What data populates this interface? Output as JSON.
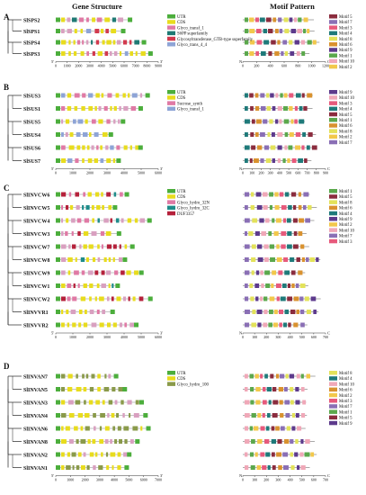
{
  "headers": {
    "gene_structure": "Gene Structure",
    "motif_pattern": "Motif Pattern"
  },
  "colors": {
    "UTR": "#4cae3c",
    "CDS": "#e8dc1e",
    "intron": "#d9a0c0",
    "Glyco_transf_1": "#e07aa5",
    "S6PP_superfamily": "#1f7a74",
    "Glycosyltransferase_GTB": "#d23a4e",
    "Glyco_transf_4_4": "#8ea4d6",
    "Sucrose_synth": "#e07aa5",
    "Glyco_hydro_32N": "#e07aa5",
    "Glyco_hydro_32C": "#1f8c8a",
    "DUF3357": "#b5213b",
    "Glyco_hydro_100": "#8a9a4a",
    "Motif1": "#5ba84c",
    "Motif2": "#f2c84b",
    "Motif3": "#e75a7c",
    "Motif4": "#1f7a7a",
    "Motif5": "#8b2c3e",
    "Motif6": "#d9922f",
    "Motif7": "#8a6fb5",
    "Motif8": "#e3e25a",
    "Motif9": "#5d3a8c",
    "Motif10": "#f0a8b8"
  },
  "sections": [
    {
      "label": "A",
      "genes": [
        "SlSPS2",
        "SlSPS1",
        "SlSPS4",
        "SlSPS3"
      ],
      "gene_axis": {
        "max": 9000,
        "ticks": [
          "0",
          "1000",
          "2000",
          "3000",
          "4000",
          "5000",
          "6000",
          "7000",
          "8000",
          "9000"
        ]
      },
      "gene_legend": [
        "UTR",
        "CDS",
        "Glyco_transf_1",
        "S6PP superfamily",
        "Glycosyltransferase_GTB-type superfamily",
        "Glyco_trans_4_4"
      ],
      "gene_legend_colors": [
        "UTR",
        "CDS",
        "Glyco_transf_1",
        "S6PP_superfamily",
        "Glycosyltransferase_GTB",
        "Glyco_transf_4_4"
      ],
      "motif_axis": {
        "max": 1200,
        "ticks": [
          "0",
          "200",
          "400",
          "600",
          "800",
          "1000",
          "1200"
        ]
      },
      "motif_legend": [
        "Motif 5",
        "Motif 7",
        "Motif 3",
        "Motif 4",
        "Motif 8",
        "Motif 6",
        "Motif 9",
        "Motif 1",
        "Motif 10",
        "Motif 2"
      ]
    },
    {
      "label": "B",
      "genes": [
        "SlSUS3",
        "SlSUS1",
        "SlSUS5",
        "SlSUS4",
        "SlSUS6",
        "SlSUS7"
      ],
      "gene_axis": {
        "max": 6000,
        "ticks": [
          "0",
          "1000",
          "2000",
          "3000",
          "4000",
          "5000",
          "6000"
        ]
      },
      "gene_legend": [
        "UTR",
        "CDS",
        "Sucrose_synth",
        "Glyco_transf_1"
      ],
      "gene_legend_colors": [
        "UTR",
        "CDS",
        "Sucrose_synth",
        "Glyco_transf_4_4"
      ],
      "motif_axis": {
        "max": 900,
        "ticks": [
          "0",
          "100",
          "200",
          "300",
          "400",
          "500",
          "600",
          "700",
          "800",
          "900"
        ]
      },
      "motif_legend": [
        "Motif 9",
        "Motif 10",
        "Motif 3",
        "Motif 4",
        "Motif 5",
        "Motif 1",
        "Motif 6",
        "Motif 8",
        "Motif 2",
        "Motif 7"
      ]
    },
    {
      "label": "C",
      "genes": [
        "SlINVCW6",
        "SlINVCW5",
        "SlINVCW4",
        "SlINVCW3",
        "SlINVCW7",
        "SlINVCW8",
        "SlINVCW9",
        "SlINVCW1",
        "SlINVCW2",
        "SlINVVR1",
        "SlINVVR2"
      ],
      "gene_axis": {
        "max": 6000,
        "ticks": [
          "0",
          "1000",
          "2000",
          "3000",
          "4000",
          "5000",
          "6000"
        ]
      },
      "gene_legend": [
        "UTR",
        "CDS",
        "Glyco_hydro_32N",
        "Glyco_hydro_32C",
        "DUF3357"
      ],
      "gene_legend_colors": [
        "UTR",
        "CDS",
        "Glyco_hydro_32N",
        "Glyco_hydro_32C",
        "DUF3357"
      ],
      "motif_axis": {
        "max": 700,
        "ticks": [
          "0",
          "100",
          "200",
          "300",
          "400",
          "500",
          "600",
          "700"
        ]
      },
      "motif_legend": [
        "Motif 1",
        "Motif 5",
        "Motif 8",
        "Motif 6",
        "Motif 4",
        "Motif 9",
        "Motif 2",
        "Motif 10",
        "Motif 7",
        "Motif 3"
      ]
    },
    {
      "label": "D",
      "genes": [
        "SlINVAN7",
        "SlINVAN5",
        "SlINVAN3",
        "SlINVAN4",
        "SlINVAN6",
        "SlINVAN8",
        "SlINVAN2",
        "SlINVAN1"
      ],
      "gene_axis": {
        "max": 7000,
        "ticks": [
          "0",
          "1000",
          "2000",
          "3000",
          "4000",
          "5000",
          "6000",
          "7000"
        ]
      },
      "gene_legend": [
        "UTR",
        "CDS",
        "Glyco_hydro_100"
      ],
      "gene_legend_colors": [
        "UTR",
        "CDS",
        "Glyco_hydro_100"
      ],
      "motif_axis": {
        "max": 700,
        "ticks": [
          "0",
          "100",
          "200",
          "300",
          "400",
          "500",
          "600",
          "700"
        ]
      },
      "motif_legend": [
        "Motif 8",
        "Motif 4",
        "Motif 10",
        "Motif 6",
        "Motif 2",
        "Motif 3",
        "Motif 7",
        "Motif 1",
        "Motif 5",
        "Motif 9"
      ]
    }
  ]
}
